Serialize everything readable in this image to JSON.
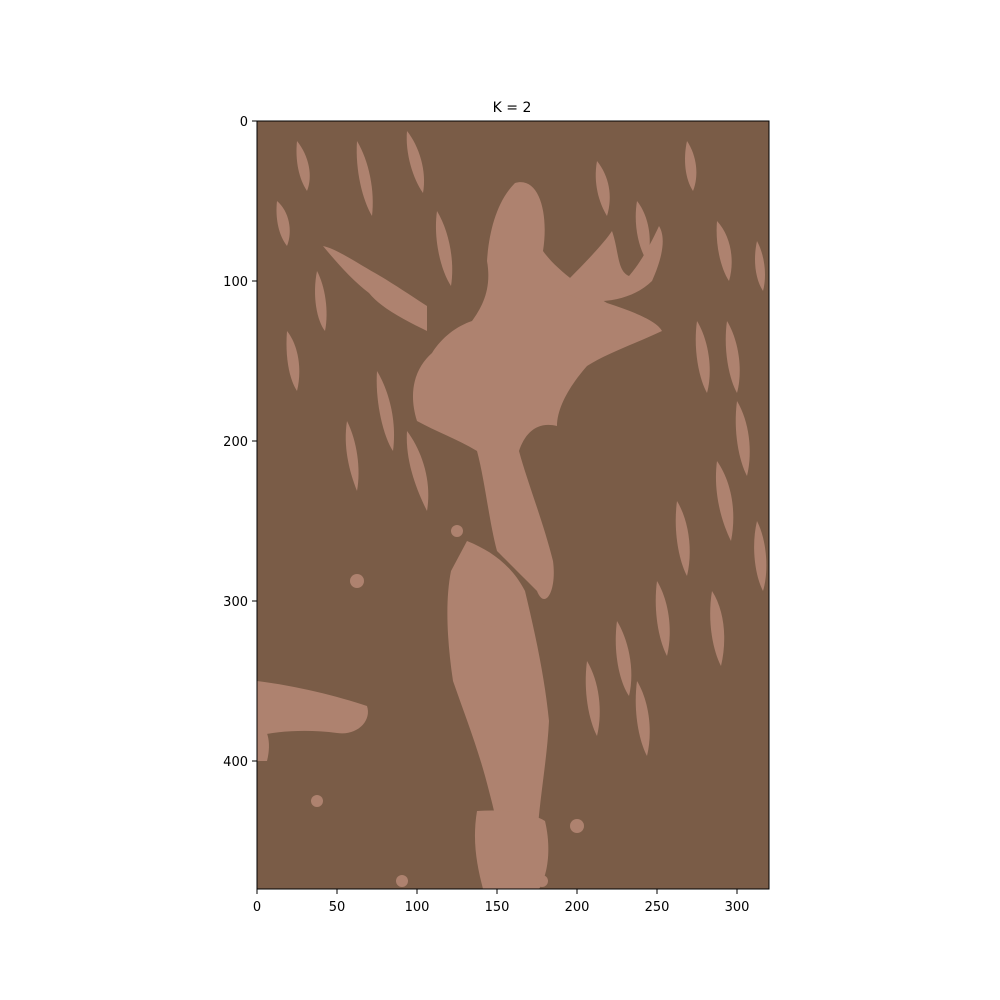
{
  "figure": {
    "title": "K = 2"
  },
  "image": {
    "width": 320,
    "height": 480,
    "description_colors": {
      "cluster_dark": "#7a5c47",
      "cluster_light": "#ae826f"
    }
  },
  "axes": {
    "x": {
      "range": [
        0,
        320
      ],
      "ticks": [
        {
          "value": 0,
          "label": "0"
        },
        {
          "value": 50,
          "label": "50"
        },
        {
          "value": 100,
          "label": "100"
        },
        {
          "value": 150,
          "label": "150"
        },
        {
          "value": 200,
          "label": "200"
        },
        {
          "value": 250,
          "label": "250"
        },
        {
          "value": 300,
          "label": "300"
        }
      ]
    },
    "y": {
      "range": [
        0,
        480
      ],
      "inverted": true,
      "ticks": [
        {
          "value": 0,
          "label": "0"
        },
        {
          "value": 100,
          "label": "100"
        },
        {
          "value": 200,
          "label": "200"
        },
        {
          "value": 300,
          "label": "300"
        },
        {
          "value": 400,
          "label": "400"
        }
      ]
    }
  }
}
